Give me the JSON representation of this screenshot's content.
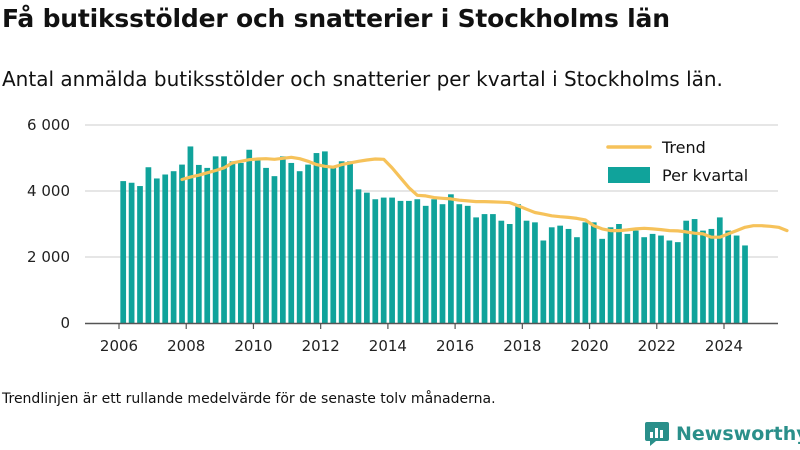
{
  "header": {
    "title": "Få butiksstölder och snatterier i Stockholms län",
    "subtitle": "Antal anmälda butiksstölder och snatterier per kvartal i Stockholms län."
  },
  "footnote": "Trendlinjen är ett rullande medelvärde för de senaste tolv månaderna.",
  "brand": {
    "name": "Newsworthy",
    "logo_icon": "newsworthy-logo-icon",
    "color": "#2a8f8a"
  },
  "chart_data": {
    "type": "bar",
    "colors": {
      "bars": "#10a39b",
      "trend": "#f6c25a",
      "grid": "#cccccc",
      "axis": "#555555"
    },
    "grid": true,
    "legend_position": "top-right",
    "legend": [
      {
        "label": "Trend",
        "type": "line"
      },
      {
        "label": "Per kvartal",
        "type": "bar"
      }
    ],
    "ylim": [
      0,
      6000
    ],
    "yticks": [
      0,
      2000,
      4000,
      6000
    ],
    "ytick_labels": [
      "0",
      "2 000",
      "4 000",
      "6 000"
    ],
    "xticks": [
      2006,
      2008,
      2010,
      2012,
      2014,
      2016,
      2018,
      2020,
      2022,
      2024
    ],
    "xtick_labels": [
      "2006",
      "2008",
      "2010",
      "2012",
      "2014",
      "2016",
      "2018",
      "2020",
      "2022",
      "2024"
    ],
    "start_year": 2006,
    "series": [
      {
        "name": "Per kvartal",
        "values": [
          4300,
          4250,
          4150,
          4720,
          4380,
          4500,
          4600,
          4800,
          5350,
          4790,
          4700,
          5050,
          5050,
          4900,
          4850,
          5250,
          4950,
          4700,
          4450,
          5050,
          4850,
          4600,
          4800,
          5150,
          5200,
          4700,
          4900,
          4900,
          4050,
          3950,
          3750,
          3800,
          3800,
          3700,
          3700,
          3750,
          3550,
          3750,
          3600,
          3900,
          3600,
          3550,
          3200,
          3300,
          3300,
          3100,
          3000,
          3600,
          3100,
          3050,
          2500,
          2900,
          2950,
          2850,
          2600,
          3050,
          3050,
          2550,
          2900,
          3000,
          2700,
          2800,
          2600,
          2700,
          2650,
          2500,
          2450,
          3100,
          3150,
          2800,
          2850,
          3200,
          2800,
          2650,
          2350
        ]
      },
      {
        "name": "Trend",
        "start_index": 7,
        "values": [
          4350,
          4420,
          4480,
          4550,
          4620,
          4700,
          4850,
          4900,
          4950,
          4970,
          4980,
          4960,
          4990,
          5020,
          4980,
          4900,
          4800,
          4750,
          4720,
          4800,
          4850,
          4900,
          4940,
          4970,
          4960,
          4700,
          4400,
          4100,
          3870,
          3850,
          3800,
          3780,
          3760,
          3720,
          3700,
          3680,
          3680,
          3670,
          3660,
          3650,
          3550,
          3450,
          3350,
          3300,
          3250,
          3220,
          3200,
          3170,
          3120,
          2950,
          2850,
          2800,
          2800,
          2820,
          2850,
          2870,
          2850,
          2830,
          2800,
          2790,
          2760,
          2720,
          2700,
          2600,
          2600,
          2700,
          2800,
          2900,
          2950,
          2950,
          2930,
          2900,
          2800
        ]
      }
    ]
  }
}
